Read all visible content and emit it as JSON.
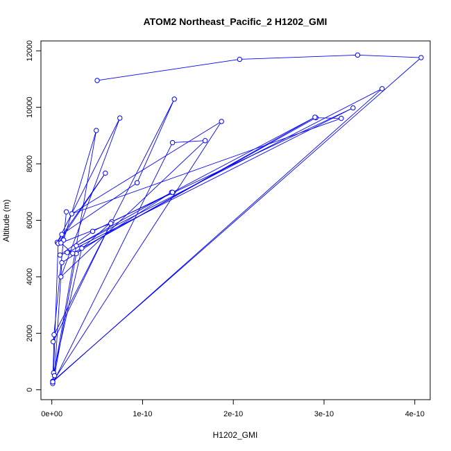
{
  "chart_data": {
    "type": "line",
    "title": "ATOM2 Northeast_Pacific_2 H1202_GMI",
    "xlabel": "H1202_GMI",
    "ylabel": "Altitude (m)",
    "xlim": [
      -1.2e-11,
      4.17e-10
    ],
    "ylim": [
      -350,
      12350
    ],
    "x_ticks": [
      {
        "value": 0,
        "label": "0e+00"
      },
      {
        "value": 1e-10,
        "label": "1e-10"
      },
      {
        "value": 2e-10,
        "label": "2e-10"
      },
      {
        "value": 3e-10,
        "label": "3e-10"
      },
      {
        "value": 4e-10,
        "label": "4e-10"
      }
    ],
    "y_ticks": [
      {
        "value": 0,
        "label": "0"
      },
      {
        "value": 2000,
        "label": "2000"
      },
      {
        "value": 4000,
        "label": "4000"
      },
      {
        "value": 6000,
        "label": "6000"
      },
      {
        "value": 8000,
        "label": "8000"
      },
      {
        "value": 10000,
        "label": "10000"
      },
      {
        "value": 12000,
        "label": "12000"
      }
    ],
    "grid": false,
    "color": "#0000ff",
    "series": [
      {
        "x": [
          5e-11,
          2.07e-10,
          3.37e-10,
          4.07e-10,
          1e-12,
          4.9e-11,
          1.3e-11,
          1.1e-11,
          9.4e-11,
          1.35e-10,
          2.5e-12,
          1e-12,
          1.33e-10,
          1.69e-10,
          1e-11,
          7.5e-11,
          6e-12,
          5.9e-11,
          7e-12,
          2e-12,
          3.3e-11,
          2.91e-10,
          3.19e-10,
          2.2e-11,
          1.87e-10,
          1e-12,
          3.64e-10,
          2.7e-11,
          1.32e-10,
          1.1e-11,
          3e-12,
          2.7e-11,
          6.6e-11,
          3.32e-10,
          1.7e-11,
          9e-12,
          4.5e-11,
          1.33e-10,
          2.9e-10,
          2.3e-11,
          1e-11,
          6.5e-11,
          1.5e-12,
          1.6e-11
        ],
        "y": [
          10950,
          11700,
          11850,
          11760,
          300,
          9180,
          5300,
          5500,
          7330,
          10290,
          1950,
          220,
          8750,
          8820,
          4000,
          9620,
          5220,
          7670,
          5180,
          600,
          5010,
          9630,
          9610,
          6230,
          9500,
          280,
          10660,
          5100,
          6990,
          4500,
          500,
          4820,
          5950,
          9980,
          4860,
          4770,
          5610,
          6990,
          9650,
          4830,
          5200,
          5890,
          1700,
          6300
        ]
      }
    ]
  }
}
